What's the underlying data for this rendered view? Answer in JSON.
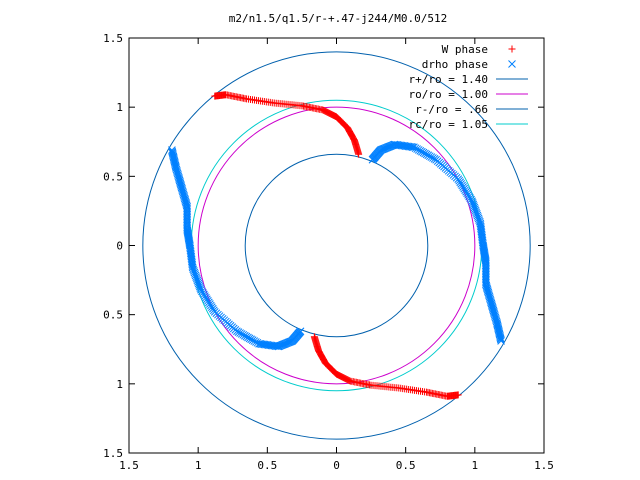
{
  "chart_data": {
    "type": "scatter",
    "title": "m2/n1.5/q1.5/r-+.47-j244/M0.0/512",
    "xlabel": "",
    "ylabel": "",
    "xlim": [
      -1.5,
      1.5
    ],
    "ylim": [
      -1.5,
      1.5
    ],
    "x_tick_labels": [
      "1.5",
      "1",
      "0.5",
      "0",
      "0.5",
      "1",
      "1.5"
    ],
    "y_tick_labels": [
      "1.5",
      "1",
      "0.5",
      "0",
      "0.5",
      "1",
      "1.5"
    ],
    "grid": false,
    "legend_position": "top-right",
    "series": [
      {
        "name": "W phase",
        "marker": "+",
        "color": "#ff0000",
        "arms": [
          [
            [
              -0.88,
              1.08
            ],
            [
              -0.8,
              1.09
            ],
            [
              -0.65,
              1.06
            ],
            [
              -0.45,
              1.03
            ],
            [
              -0.25,
              1.01
            ],
            [
              -0.1,
              0.98
            ],
            [
              0.0,
              0.93
            ],
            [
              0.08,
              0.85
            ],
            [
              0.13,
              0.76
            ],
            [
              0.16,
              0.66
            ]
          ],
          [
            [
              0.88,
              -1.08
            ],
            [
              0.8,
              -1.09
            ],
            [
              0.65,
              -1.06
            ],
            [
              0.45,
              -1.03
            ],
            [
              0.25,
              -1.01
            ],
            [
              0.1,
              -0.98
            ],
            [
              0.0,
              -0.93
            ],
            [
              -0.08,
              -0.85
            ],
            [
              -0.13,
              -0.76
            ],
            [
              -0.16,
              -0.66
            ]
          ]
        ]
      },
      {
        "name": "drho phase",
        "marker": "x",
        "color": "#0080ff",
        "arms": [
          [
            [
              0.26,
              0.62
            ],
            [
              0.32,
              0.69
            ],
            [
              0.42,
              0.73
            ],
            [
              0.56,
              0.71
            ],
            [
              0.72,
              0.62
            ],
            [
              0.88,
              0.48
            ],
            [
              0.98,
              0.32
            ],
            [
              1.04,
              0.16
            ],
            [
              1.06,
              0.0
            ],
            [
              1.08,
              -0.12
            ],
            [
              1.08,
              -0.28
            ],
            [
              1.12,
              -0.42
            ],
            [
              1.16,
              -0.56
            ],
            [
              1.19,
              -0.69
            ]
          ],
          [
            [
              -0.26,
              -0.62
            ],
            [
              -0.32,
              -0.69
            ],
            [
              -0.42,
              -0.73
            ],
            [
              -0.56,
              -0.71
            ],
            [
              -0.72,
              -0.62
            ],
            [
              -0.88,
              -0.48
            ],
            [
              -0.98,
              -0.32
            ],
            [
              -1.04,
              -0.16
            ],
            [
              -1.06,
              0.0
            ],
            [
              -1.08,
              0.12
            ],
            [
              -1.08,
              0.28
            ],
            [
              -1.12,
              0.42
            ],
            [
              -1.16,
              0.56
            ],
            [
              -1.19,
              0.69
            ]
          ]
        ]
      },
      {
        "name": "r+/ro = 1.40",
        "type": "circle",
        "radius": 1.4,
        "color": "#0060ad"
      },
      {
        "name": "ro/ro = 1.00",
        "type": "circle",
        "radius": 1.0,
        "color": "#cc00cc"
      },
      {
        "name": "r-/ro = .66",
        "type": "circle",
        "radius": 0.66,
        "color": "#0060ad"
      },
      {
        "name": "rc/ro = 1.05",
        "type": "circle",
        "radius": 1.05,
        "color": "#00cccc"
      }
    ]
  }
}
